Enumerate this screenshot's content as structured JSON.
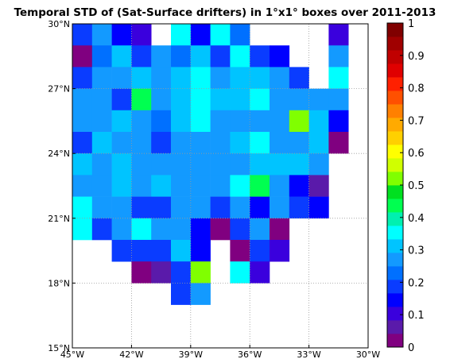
{
  "chart_data": {
    "type": "heatmap",
    "title": "Temporal STD of (Sat-Surface drifters) in 1°x1° boxes over 2011-2013",
    "x_range": [
      -45,
      -30
    ],
    "y_range": [
      15,
      30
    ],
    "x_ticks": [
      {
        "value": -45,
        "label": "45°W"
      },
      {
        "value": -42,
        "label": "42°W"
      },
      {
        "value": -39,
        "label": "39°W"
      },
      {
        "value": -36,
        "label": "36°W"
      },
      {
        "value": -33,
        "label": "33°W"
      },
      {
        "value": -30,
        "label": "30°W"
      }
    ],
    "y_ticks": [
      {
        "value": 15,
        "label": "15°N"
      },
      {
        "value": 18,
        "label": "18°N"
      },
      {
        "value": 21,
        "label": "21°N"
      },
      {
        "value": 24,
        "label": "24°N"
      },
      {
        "value": 27,
        "label": "27°N"
      },
      {
        "value": 30,
        "label": "30°N"
      }
    ],
    "grid": true,
    "colorbar": {
      "range": [
        0,
        1
      ],
      "ticks": [
        0,
        0.1,
        0.2,
        0.3,
        0.4,
        0.5,
        0.6,
        0.7,
        0.8,
        0.9,
        1
      ],
      "tick_labels": [
        "0",
        "0.1",
        "0.2",
        "0.3",
        "0.4",
        "0.5",
        "0.6",
        "0.7",
        "0.8",
        "0.9",
        "1"
      ],
      "colors": [
        "#800080",
        "#5a1aaa",
        "#3a00dd",
        "#0000ff",
        "#0a3cff",
        "#0070ff",
        "#139aff",
        "#00c4ff",
        "#00ffff",
        "#00f0b0",
        "#00ff50",
        "#00e020",
        "#80ff00",
        "#d0ff00",
        "#ffff00",
        "#ffd000",
        "#ffaa00",
        "#ff8000",
        "#ff5000",
        "#ff2000",
        "#e00000",
        "#c00000",
        "#a00000",
        "#800000"
      ],
      "position": "right"
    },
    "cells": {
      "lat_rows": [
        29.5,
        28.5,
        27.5,
        26.5,
        25.5,
        24.5,
        23.5,
        22.5,
        21.5,
        20.5,
        19.5,
        18.5,
        17.5
      ],
      "lon_start": -44.5,
      "values": [
        [
          0.2,
          0.28,
          0.15,
          0.1,
          null,
          0.35,
          0.15,
          0.35,
          0.22,
          null,
          null,
          null,
          null,
          0.1
        ],
        [
          0.02,
          0.22,
          0.3,
          0.2,
          0.25,
          0.22,
          0.3,
          0.2,
          0.35,
          0.2,
          0.15,
          null,
          null,
          0.28
        ],
        [
          0.2,
          0.25,
          0.25,
          0.3,
          0.25,
          0.3,
          0.35,
          0.28,
          0.3,
          0.32,
          0.25,
          0.2,
          null,
          0.35
        ],
        [
          0.25,
          0.25,
          0.2,
          0.42,
          0.25,
          0.3,
          0.35,
          0.3,
          0.3,
          0.35,
          0.25,
          0.25,
          0.25,
          0.25
        ],
        [
          0.25,
          0.25,
          0.3,
          0.25,
          0.22,
          0.3,
          0.35,
          0.25,
          0.25,
          0.28,
          0.25,
          0.5,
          0.3,
          0.15
        ],
        [
          0.2,
          0.3,
          0.25,
          0.25,
          0.2,
          0.25,
          0.25,
          0.25,
          0.3,
          0.35,
          0.25,
          0.25,
          0.3,
          0.02
        ],
        [
          0.3,
          0.25,
          0.3,
          0.25,
          0.25,
          0.25,
          0.25,
          0.25,
          0.28,
          0.3,
          0.3,
          0.3,
          0.25,
          null
        ],
        [
          0.25,
          0.25,
          0.3,
          0.25,
          0.3,
          0.25,
          0.25,
          0.25,
          0.35,
          0.42,
          0.25,
          0.15,
          0.05,
          null
        ],
        [
          0.35,
          0.25,
          0.28,
          0.2,
          0.2,
          0.25,
          0.25,
          0.2,
          0.25,
          0.15,
          0.25,
          0.2,
          0.15,
          null
        ],
        [
          0.35,
          0.2,
          0.25,
          0.35,
          0.25,
          0.25,
          0.15,
          0.02,
          0.2,
          0.25,
          0.02,
          null,
          null,
          null
        ],
        [
          null,
          null,
          0.2,
          0.2,
          0.2,
          0.3,
          0.15,
          null,
          0.02,
          0.18,
          0.12,
          null,
          null,
          null
        ],
        [
          null,
          null,
          null,
          0.02,
          0.05,
          0.2,
          0.5,
          null,
          0.35,
          0.1,
          null,
          null,
          null,
          null
        ],
        [
          null,
          null,
          null,
          null,
          null,
          0.2,
          0.25,
          null,
          null,
          null,
          null,
          null,
          null,
          null
        ]
      ]
    }
  }
}
